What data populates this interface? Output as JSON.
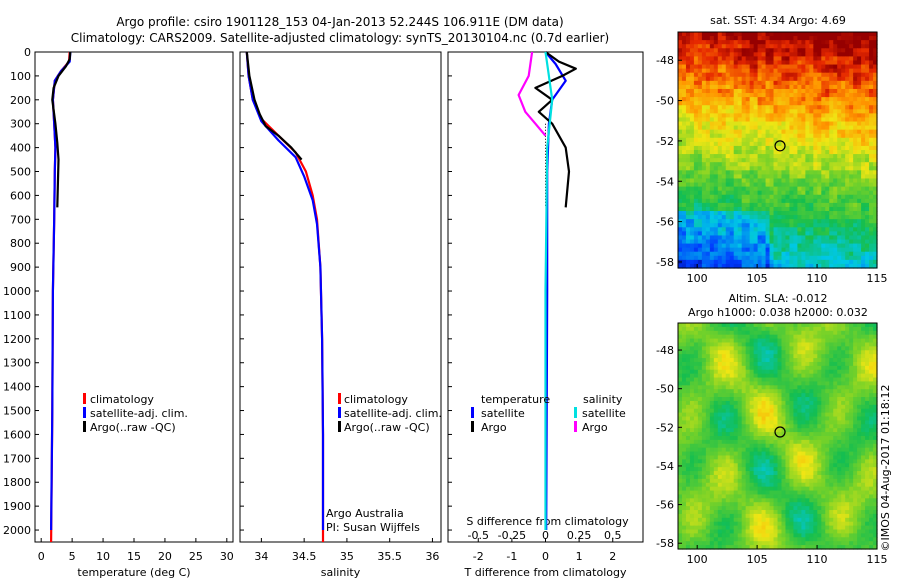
{
  "title": {
    "line1": "Argo profile: csiro 1901128_153 04-Jan-2013 52.244S 106.911E (DM data)",
    "line2": "Climatology: CARS2009. Satellite-adjusted climatology: synTS_20130104.nc (0.7d earlier)"
  },
  "depth_ticks": [
    "0",
    "100",
    "200",
    "300",
    "400",
    "500",
    "600",
    "700",
    "800",
    "900",
    "1000",
    "1100",
    "1200",
    "1300",
    "1400",
    "1500",
    "1600",
    "1700",
    "1800",
    "1900",
    "2000"
  ],
  "legend_profiles": {
    "climatology": "climatology",
    "satellite": "satellite-adj. clim.",
    "argo": "Argo(..raw -QC)"
  },
  "legend_diff": {
    "temperature_header": "temperature",
    "salinity_header": "salinity",
    "t_satellite": "satellite",
    "t_argo": "Argo",
    "s_satellite": "satellite",
    "s_argo": "Argo"
  },
  "credits": {
    "line1": "Argo Australia",
    "line2": "PI: Susan Wijffels"
  },
  "sst_map": {
    "title": "sat. SST: 4.34  Argo: 4.69",
    "lat_ticks": [
      "-48",
      "-50",
      "-52",
      "-54",
      "-56",
      "-58"
    ],
    "lon_ticks": [
      "100",
      "105",
      "110",
      "115"
    ]
  },
  "sla_map": {
    "title_line1": "Altim. SLA: -0.012",
    "title_line2": "Argo h1000: 0.038 h2000: 0.032",
    "lat_ticks": [
      "-48",
      "-50",
      "-52",
      "-54",
      "-56",
      "-58"
    ],
    "lon_ticks": [
      "100",
      "105",
      "110",
      "115"
    ]
  },
  "watermark": "©IMOS 04-Aug-2017 01:18:12",
  "colors": {
    "climatology": "#ff0000",
    "satellite": "#0000ff",
    "argo": "#000000",
    "salinity_satellite": "#00e0e0",
    "salinity_argo": "#ff00ff"
  },
  "chart_data": [
    {
      "type": "line",
      "xlabel": "temperature (deg C)",
      "ylabel": "",
      "xlim": [
        -1,
        31
      ],
      "ylim": [
        2050,
        0
      ],
      "x_ticks": [
        0,
        5,
        10,
        15,
        20,
        25,
        30
      ],
      "x_tick_labels": [
        "0",
        "5",
        "10",
        "15",
        "20",
        "25",
        "30"
      ],
      "series": [
        {
          "name": "climatology",
          "color": "#ff0000",
          "points": [
            [
              4.6,
              0
            ],
            [
              4.5,
              40
            ],
            [
              3.2,
              80
            ],
            [
              2.2,
              120
            ],
            [
              1.9,
              200
            ],
            [
              2.1,
              300
            ],
            [
              2.3,
              400
            ],
            [
              2.2,
              500
            ],
            [
              2.1,
              700
            ],
            [
              1.9,
              1000
            ],
            [
              1.8,
              1500
            ],
            [
              1.6,
              2050
            ]
          ]
        },
        {
          "name": "satellite-adj. clim.",
          "color": "#0000ff",
          "points": [
            [
              4.7,
              0
            ],
            [
              4.6,
              40
            ],
            [
              3.2,
              80
            ],
            [
              2.2,
              120
            ],
            [
              1.9,
              200
            ],
            [
              2.1,
              300
            ],
            [
              2.3,
              400
            ],
            [
              2.2,
              500
            ],
            [
              2.1,
              700
            ],
            [
              1.9,
              1000
            ],
            [
              1.8,
              1500
            ],
            [
              1.6,
              2000
            ]
          ]
        },
        {
          "name": "Argo(..raw -QC)",
          "color": "#000000",
          "points": [
            [
              4.7,
              0
            ],
            [
              4.6,
              30
            ],
            [
              4.0,
              60
            ],
            [
              2.8,
              100
            ],
            [
              2.0,
              150
            ],
            [
              1.8,
              200
            ],
            [
              2.3,
              300
            ],
            [
              2.6,
              380
            ],
            [
              2.8,
              450
            ],
            [
              2.7,
              550
            ],
            [
              2.6,
              650
            ]
          ]
        }
      ]
    },
    {
      "type": "line",
      "xlabel": "salinity",
      "ylabel": "",
      "xlim": [
        33.75,
        36.1
      ],
      "ylim": [
        2050,
        0
      ],
      "x_ticks": [
        34,
        34.5,
        35,
        35.5,
        36
      ],
      "x_tick_labels": [
        "34",
        "34.5",
        "35",
        "35.5",
        "36"
      ],
      "series": [
        {
          "name": "climatology",
          "color": "#ff0000",
          "points": [
            [
              33.83,
              0
            ],
            [
              33.85,
              100
            ],
            [
              33.9,
              200
            ],
            [
              34.0,
              280
            ],
            [
              34.2,
              350
            ],
            [
              34.4,
              420
            ],
            [
              34.52,
              500
            ],
            [
              34.6,
              600
            ],
            [
              34.65,
              700
            ],
            [
              34.69,
              900
            ],
            [
              34.71,
              1200
            ],
            [
              34.72,
              1600
            ],
            [
              34.72,
              2050
            ]
          ]
        },
        {
          "name": "satellite-adj. clim.",
          "color": "#0000ff",
          "points": [
            [
              33.83,
              0
            ],
            [
              33.85,
              100
            ],
            [
              33.9,
              200
            ],
            [
              34.0,
              290
            ],
            [
              34.2,
              370
            ],
            [
              34.4,
              440
            ],
            [
              34.5,
              520
            ],
            [
              34.6,
              620
            ],
            [
              34.65,
              720
            ],
            [
              34.69,
              900
            ],
            [
              34.71,
              1200
            ],
            [
              34.72,
              1600
            ],
            [
              34.72,
              2000
            ]
          ]
        },
        {
          "name": "Argo(..raw -QC)",
          "color": "#000000",
          "points": [
            [
              33.83,
              0
            ],
            [
              33.86,
              100
            ],
            [
              33.92,
              200
            ],
            [
              33.98,
              260
            ],
            [
              34.05,
              310
            ],
            [
              34.2,
              350
            ],
            [
              34.35,
              400
            ],
            [
              34.47,
              450
            ]
          ]
        }
      ]
    },
    {
      "type": "line",
      "xlabel": "T difference from climatology",
      "x2label": "S difference from climatology",
      "ylabel": "",
      "xlim": [
        -2.9,
        2.9
      ],
      "ylim": [
        2050,
        0
      ],
      "x_ticks": [
        -2,
        -1,
        0,
        1,
        2
      ],
      "x_tick_labels": [
        "-2",
        "-1",
        "0",
        "1",
        "2"
      ],
      "x2_ticks": [
        -0.5,
        -0.25,
        0,
        0.25,
        0.5
      ],
      "x2_tick_labels": [
        "-0.5",
        "-0.25",
        "0",
        "0.25",
        "0.5"
      ],
      "series": [
        {
          "name": "temperature satellite",
          "color": "#0000ff",
          "points": [
            [
              0,
              0
            ],
            [
              0.3,
              50
            ],
            [
              0.6,
              120
            ],
            [
              0.2,
              200
            ],
            [
              0.1,
              300
            ],
            [
              0.05,
              500
            ],
            [
              0.05,
              1000
            ],
            [
              0.02,
              2000
            ]
          ]
        },
        {
          "name": "temperature Argo",
          "color": "#000000",
          "points": [
            [
              0,
              0
            ],
            [
              0.4,
              40
            ],
            [
              0.9,
              70
            ],
            [
              0.5,
              100
            ],
            [
              -0.3,
              150
            ],
            [
              0.2,
              200
            ],
            [
              -0.2,
              250
            ],
            [
              0.2,
              300
            ],
            [
              0.6,
              400
            ],
            [
              0.7,
              500
            ],
            [
              0.6,
              650
            ]
          ]
        },
        {
          "name": "salinity satellite",
          "color": "#00e0e0",
          "points": [
            [
              0,
              0
            ],
            [
              0.1,
              100
            ],
            [
              0.2,
              200
            ],
            [
              0.05,
              400
            ],
            [
              0,
              1000
            ],
            [
              0,
              2000
            ]
          ]
        },
        {
          "name": "salinity Argo",
          "color": "#ff00ff",
          "points": [
            [
              -0.4,
              0
            ],
            [
              -0.5,
              100
            ],
            [
              -0.8,
              180
            ],
            [
              -0.6,
              250
            ],
            [
              -0.3,
              300
            ],
            [
              0,
              350
            ]
          ]
        }
      ]
    }
  ]
}
